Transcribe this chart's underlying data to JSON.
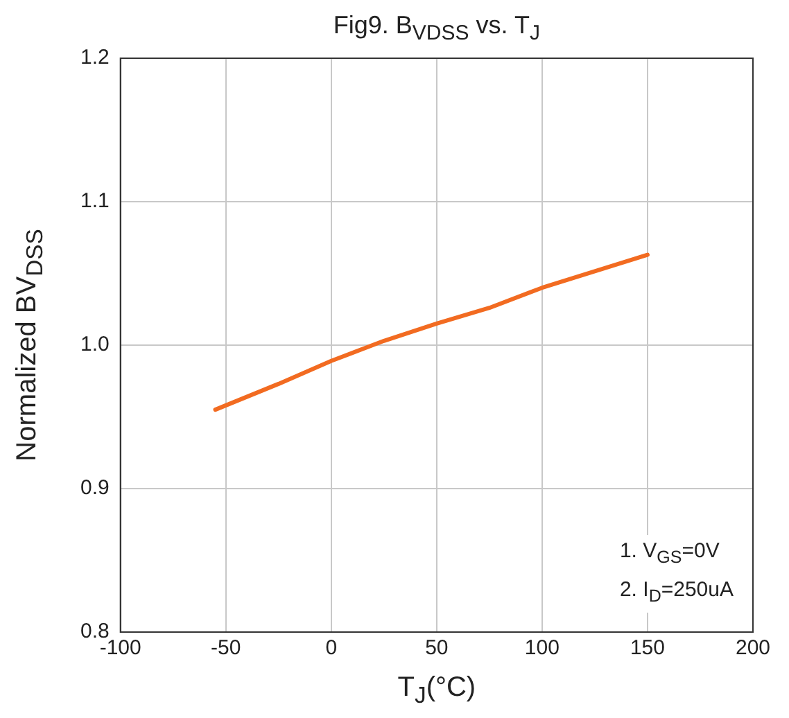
{
  "chart_data": {
    "type": "line",
    "title": "Fig9.  B$_{VDSS}$  vs. T$_{J}$",
    "xlabel": "T$_{J}$(°C)",
    "ylabel": "Normalized  BV$_{DSS}$",
    "x": [
      -55,
      -25,
      0,
      25,
      50,
      75,
      100,
      150
    ],
    "series": [
      {
        "color": "#f26b21",
        "values": [
          0.955,
          0.973,
          0.989,
          1.003,
          1.015,
          1.026,
          1.04,
          1.063
        ]
      }
    ],
    "xlim": [
      -100,
      200
    ],
    "xticks": [
      -100,
      -50,
      0,
      50,
      100,
      150,
      200
    ],
    "ylim": [
      0.8,
      1.2
    ],
    "yticks": [
      {
        "value": 0.8,
        "label": "0.8"
      },
      {
        "value": 0.9,
        "label": "0.9"
      },
      {
        "value": 1.0,
        "label": "1.0"
      },
      {
        "value": 1.1,
        "label": "1.1"
      },
      {
        "value": 1.2,
        "label": "1.2"
      }
    ],
    "grid": true,
    "legend": false,
    "marker": "none",
    "line_style": "solid",
    "annotations": [
      "1. V$_{GS}$=0V",
      "2. I$_{D}$=250uA"
    ]
  }
}
